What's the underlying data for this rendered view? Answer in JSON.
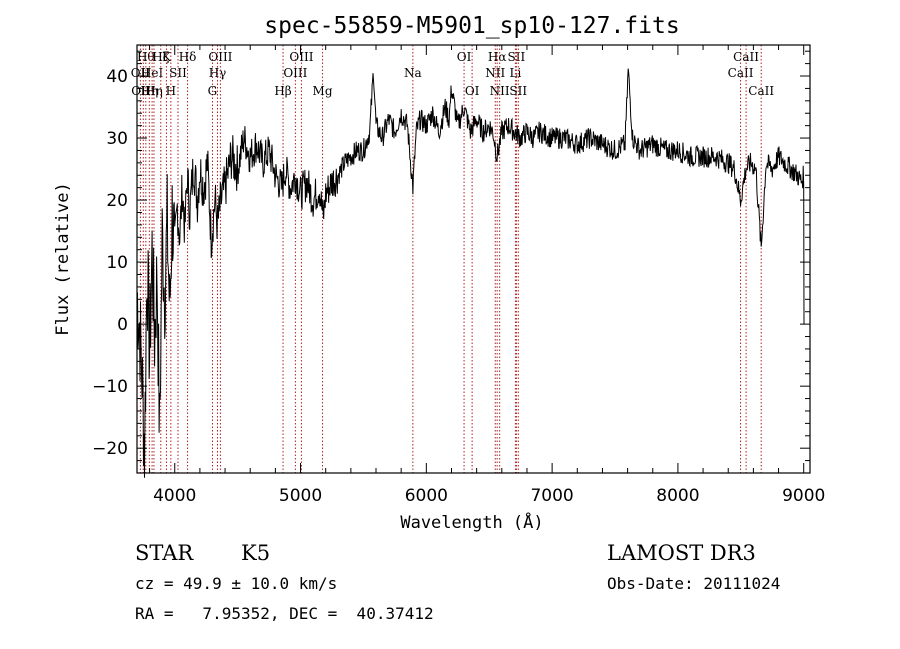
{
  "chart_data": {
    "type": "line",
    "title": "spec-55859-M5901_sp10-127.fits",
    "xlabel": "Wavelength (Å)",
    "ylabel": "Flux (relative)",
    "xlim": [
      3700,
      9050
    ],
    "ylim": [
      -24,
      45
    ],
    "xticks": [
      4000,
      5000,
      6000,
      7000,
      8000,
      9000
    ],
    "yticks": [
      -20,
      -10,
      0,
      10,
      20,
      30,
      40
    ],
    "series": [
      {
        "name": "flux",
        "points": [
          [
            3700,
            5
          ],
          [
            3720,
            0
          ],
          [
            3740,
            -8
          ],
          [
            3760,
            -20
          ],
          [
            3780,
            10
          ],
          [
            3800,
            -5
          ],
          [
            3820,
            12
          ],
          [
            3840,
            -2
          ],
          [
            3860,
            8
          ],
          [
            3880,
            -18
          ],
          [
            3900,
            14
          ],
          [
            3920,
            5
          ],
          [
            3940,
            16
          ],
          [
            3960,
            2
          ],
          [
            3980,
            18
          ],
          [
            4000,
            12
          ],
          [
            4020,
            19
          ],
          [
            4040,
            14
          ],
          [
            4060,
            22
          ],
          [
            4080,
            15
          ],
          [
            4100,
            24
          ],
          [
            4120,
            18
          ],
          [
            4150,
            26
          ],
          [
            4180,
            20
          ],
          [
            4200,
            25
          ],
          [
            4230,
            22
          ],
          [
            4260,
            26
          ],
          [
            4290,
            14
          ],
          [
            4320,
            20
          ],
          [
            4340,
            16
          ],
          [
            4370,
            20
          ],
          [
            4400,
            22
          ],
          [
            4450,
            27
          ],
          [
            4500,
            25
          ],
          [
            4550,
            30
          ],
          [
            4600,
            27
          ],
          [
            4650,
            29
          ],
          [
            4700,
            26
          ],
          [
            4750,
            28
          ],
          [
            4800,
            24
          ],
          [
            4850,
            22
          ],
          [
            4880,
            25
          ],
          [
            4920,
            22
          ],
          [
            4960,
            24
          ],
          [
            5000,
            21
          ],
          [
            5050,
            23
          ],
          [
            5100,
            20
          ],
          [
            5150,
            22
          ],
          [
            5180,
            17
          ],
          [
            5200,
            21
          ],
          [
            5250,
            23
          ],
          [
            5300,
            24
          ],
          [
            5350,
            26
          ],
          [
            5400,
            27
          ],
          [
            5450,
            28
          ],
          [
            5500,
            28
          ],
          [
            5550,
            31
          ],
          [
            5580,
            41
          ],
          [
            5600,
            32
          ],
          [
            5650,
            30
          ],
          [
            5700,
            33
          ],
          [
            5750,
            31
          ],
          [
            5800,
            34
          ],
          [
            5850,
            32
          ],
          [
            5893,
            22
          ],
          [
            5920,
            31
          ],
          [
            5950,
            33
          ],
          [
            6000,
            32
          ],
          [
            6050,
            34
          ],
          [
            6100,
            31
          ],
          [
            6150,
            35
          ],
          [
            6180,
            33
          ],
          [
            6200,
            38
          ],
          [
            6250,
            32
          ],
          [
            6300,
            35
          ],
          [
            6350,
            31
          ],
          [
            6400,
            33
          ],
          [
            6450,
            31
          ],
          [
            6500,
            32
          ],
          [
            6530,
            31
          ],
          [
            6563,
            27
          ],
          [
            6600,
            31
          ],
          [
            6650,
            32
          ],
          [
            6700,
            31
          ],
          [
            6750,
            30
          ],
          [
            6800,
            31
          ],
          [
            6850,
            30
          ],
          [
            6900,
            31
          ],
          [
            7000,
            30
          ],
          [
            7100,
            30
          ],
          [
            7200,
            29
          ],
          [
            7300,
            30
          ],
          [
            7400,
            29
          ],
          [
            7500,
            28
          ],
          [
            7580,
            29
          ],
          [
            7605,
            41
          ],
          [
            7640,
            30
          ],
          [
            7700,
            28
          ],
          [
            7800,
            29
          ],
          [
            7900,
            28
          ],
          [
            8000,
            28
          ],
          [
            8100,
            27
          ],
          [
            8200,
            27
          ],
          [
            8300,
            27
          ],
          [
            8400,
            26
          ],
          [
            8450,
            25
          ],
          [
            8498,
            20
          ],
          [
            8540,
            25
          ],
          [
            8580,
            26
          ],
          [
            8620,
            25
          ],
          [
            8662,
            12
          ],
          [
            8700,
            26
          ],
          [
            8750,
            25
          ],
          [
            8800,
            27
          ],
          [
            8850,
            26
          ],
          [
            8900,
            25
          ],
          [
            8950,
            24
          ],
          [
            8980,
            23
          ],
          [
            9000,
            24
          ],
          [
            9002,
            0
          ]
        ]
      }
    ],
    "lines": [
      {
        "wl": 3727,
        "label": "OII",
        "row": 1
      },
      {
        "wl": 3750,
        "label": "OIII",
        "row": 2
      },
      {
        "wl": 3770,
        "label": "Hθ",
        "row": 0
      },
      {
        "wl": 3798,
        "label": "Hη",
        "row": 2
      },
      {
        "wl": 3820,
        "label": "HeI",
        "row": 1
      },
      {
        "wl": 3835,
        "label": "Hη",
        "row": 2
      },
      {
        "wl": 3889,
        "label": "Hζ",
        "row": 0
      },
      {
        "wl": 3934,
        "label": "K",
        "row": 0
      },
      {
        "wl": 3969,
        "label": "H",
        "row": 2
      },
      {
        "wl": 4026,
        "label": "SII",
        "row": 1
      },
      {
        "wl": 4102,
        "label": "Hδ",
        "row": 0
      },
      {
        "wl": 4300,
        "label": "G",
        "row": 2
      },
      {
        "wl": 4340,
        "label": "Hγ",
        "row": 1
      },
      {
        "wl": 4363,
        "label": "OIII",
        "row": 0
      },
      {
        "wl": 4861,
        "label": "Hβ",
        "row": 2
      },
      {
        "wl": 4959,
        "label": "OIII",
        "row": 1
      },
      {
        "wl": 5007,
        "label": "OIII",
        "row": 0
      },
      {
        "wl": 5175,
        "label": "Mg",
        "row": 2
      },
      {
        "wl": 5893,
        "label": "Na",
        "row": 1
      },
      {
        "wl": 6300,
        "label": "OI",
        "row": 0
      },
      {
        "wl": 6364,
        "label": "OI",
        "row": 2
      },
      {
        "wl": 6548,
        "label": "NII",
        "row": 1
      },
      {
        "wl": 6563,
        "label": "Hα",
        "row": 0
      },
      {
        "wl": 6583,
        "label": "NII",
        "row": 2
      },
      {
        "wl": 6708,
        "label": "Li",
        "row": 1
      },
      {
        "wl": 6716,
        "label": "SII",
        "row": 0
      },
      {
        "wl": 6731,
        "label": "SII",
        "row": 2
      },
      {
        "wl": 8498,
        "label": "CaII",
        "row": 1
      },
      {
        "wl": 8542,
        "label": "CaII",
        "row": 0
      },
      {
        "wl": 8662,
        "label": "CaII",
        "row": 2
      }
    ],
    "line_color": "#b22222"
  },
  "info": {
    "object_type": "STAR",
    "subclass": "K5",
    "survey": "LAMOST DR3",
    "redshift": "cz = 49.9 ± 10.0 km/s",
    "obs_date": "Obs-Date: 20111024",
    "coords": "RA =   7.95352, DEC =  40.37412"
  }
}
